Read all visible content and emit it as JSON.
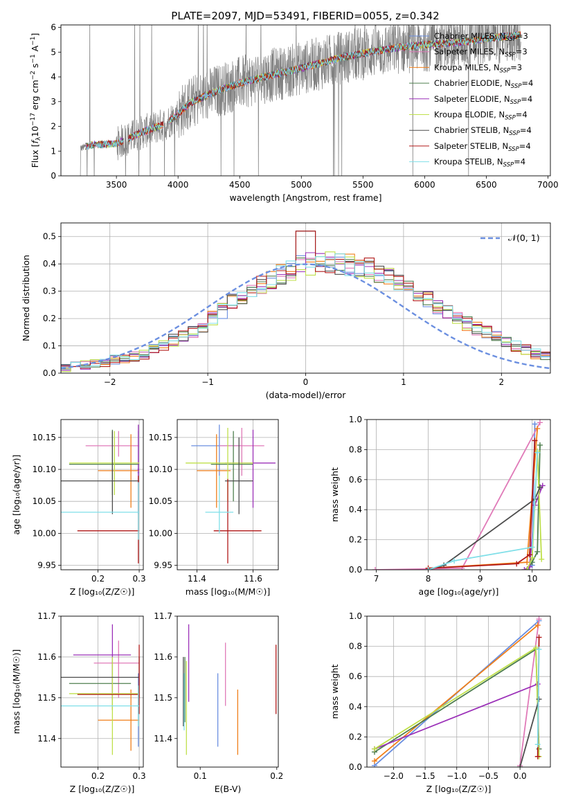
{
  "figure": {
    "title": "PLATE=2097, MJD=53491, FIBERID=0055, z=0.342"
  },
  "colors": {
    "Chabrier MILES": "#6b8fe0",
    "Salpeter MILES": "#e07ab8",
    "Kroupa MILES": "#f07f1a",
    "Chabrier ELODIE": "#4f7f4f",
    "Salpeter ELODIE": "#9b30b8",
    "Kroupa ELODIE": "#bfe04a",
    "Chabrier STELIB": "#4d4d4d",
    "Salpeter STELIB": "#b01818",
    "Kroupa STELIB": "#7fdfe8",
    "data": "#808080",
    "normal": "#6b8fe0"
  },
  "chart_data": [
    {
      "id": "spectrum",
      "type": "line",
      "title": "PLATE=2097, MJD=53491, FIBERID=0055, z=0.342",
      "xlabel": "wavelength [Angstrom, rest frame]",
      "ylabel_parts": [
        "Flux [",
        "f",
        "λ",
        "10",
        "−17",
        " erg cm",
        "−2",
        " s",
        "−1",
        " A",
        "−1",
        "]"
      ],
      "xlim": [
        3050,
        7020
      ],
      "ylim": [
        0,
        6.1
      ],
      "xticks": [
        3500,
        4000,
        4500,
        5000,
        5500,
        6000,
        6500,
        7000
      ],
      "yticks": [
        0,
        1,
        2,
        3,
        4,
        5,
        6
      ],
      "grid": false,
      "legend_position": "top-right",
      "x_range_data": [
        3200,
        6780
      ],
      "continuum": {
        "x": [
          3200,
          3300,
          3500,
          3700,
          3900,
          4000,
          4100,
          4300,
          4500,
          4700,
          5000,
          5300,
          5500,
          5800,
          6000,
          6300,
          6600,
          6780
        ],
        "y": [
          1.1,
          1.25,
          1.3,
          1.75,
          2.1,
          2.5,
          2.95,
          3.4,
          3.75,
          4.0,
          4.35,
          4.75,
          4.95,
          5.2,
          5.3,
          5.4,
          5.6,
          5.7
        ]
      },
      "legend": [
        {
          "name": "Chabrier MILES",
          "base": "Chabrier MILES, N",
          "sub": "SSP",
          "tail": "=3"
        },
        {
          "name": "Salpeter MILES",
          "base": "Salpeter MILES, N",
          "sub": "SSP",
          "tail": "=3"
        },
        {
          "name": "Kroupa MILES",
          "base": "Kroupa MILES, N",
          "sub": "SSP",
          "tail": "=3"
        },
        {
          "name": "Chabrier ELODIE",
          "base": "Chabrier ELODIE, N",
          "sub": "SSP",
          "tail": "=4"
        },
        {
          "name": "Salpeter ELODIE",
          "base": "Salpeter ELODIE, N",
          "sub": "SSP",
          "tail": "=4"
        },
        {
          "name": "Kroupa ELODIE",
          "base": "Kroupa ELODIE, N",
          "sub": "SSP",
          "tail": "=4"
        },
        {
          "name": "Chabrier STELIB",
          "base": "Chabrier STELIB, N",
          "sub": "SSP",
          "tail": "=4"
        },
        {
          "name": "Salpeter STELIB",
          "base": "Salpeter STELIB, N",
          "sub": "SSP",
          "tail": "=4"
        },
        {
          "name": "Kroupa STELIB",
          "base": "Kroupa STELIB, N",
          "sub": "SSP",
          "tail": "=4"
        }
      ]
    },
    {
      "id": "residuals",
      "type": "area",
      "xlabel": "(data-model)/error",
      "ylabel": "Normed distribution",
      "xlim": [
        -2.5,
        2.5
      ],
      "ylim": [
        0,
        0.55
      ],
      "xticks": [
        -2,
        -1,
        0,
        1,
        2
      ],
      "yticks": [
        0.0,
        0.1,
        0.2,
        0.3,
        0.4,
        0.5
      ],
      "grid": true,
      "legend_position": "top-right",
      "legend": "𝒩(0, 1)",
      "bin_width": 0.1,
      "envelope_y": [
        0.02,
        0.025,
        0.03,
        0.035,
        0.04,
        0.05,
        0.055,
        0.06,
        0.07,
        0.085,
        0.1,
        0.12,
        0.135,
        0.15,
        0.17,
        0.2,
        0.23,
        0.26,
        0.28,
        0.3,
        0.32,
        0.34,
        0.36,
        0.38,
        0.395,
        0.4,
        0.4,
        0.41,
        0.4,
        0.395,
        0.39,
        0.385,
        0.37,
        0.35,
        0.33,
        0.31,
        0.29,
        0.27,
        0.245,
        0.22,
        0.2,
        0.18,
        0.165,
        0.15,
        0.135,
        0.115,
        0.1,
        0.085,
        0.07,
        0.06,
        0.05
      ]
    },
    {
      "id": "age-vs-Z",
      "type": "scatter",
      "xlabel": "Z [log₁₀(Z/Z☉)]",
      "ylabel": "age  [log₁₀(age/yr)]",
      "xlim": [
        0.11,
        0.31
      ],
      "ylim": [
        9.943,
        10.178
      ],
      "xticks": [
        0.2,
        0.3
      ],
      "yticks": [
        9.95,
        10.0,
        10.05,
        10.1,
        10.15
      ],
      "grid": true,
      "points": [
        {
          "name": "Chabrier MILES",
          "x": 0.298,
          "xerr": [
            0.296,
            0.3
          ],
          "y": 10.095,
          "yerr": [
            10.03,
            10.16
          ]
        },
        {
          "name": "Salpeter MILES",
          "x": 0.25,
          "xerr": [
            0.17,
            0.3
          ],
          "y": 10.137,
          "yerr": [
            10.12,
            10.16
          ]
        },
        {
          "name": "Kroupa MILES",
          "x": 0.28,
          "xerr": [
            0.2,
            0.3
          ],
          "y": 10.098,
          "yerr": [
            10.04,
            10.155
          ]
        },
        {
          "name": "Chabrier ELODIE",
          "x": 0.235,
          "xerr": [
            0.13,
            0.3
          ],
          "y": 10.108,
          "yerr": [
            10.06,
            10.162
          ]
        },
        {
          "name": "Salpeter ELODIE",
          "x": 0.298,
          "xerr": [
            0.296,
            0.3
          ],
          "y": 10.1,
          "yerr": [
            10.03,
            10.17
          ]
        },
        {
          "name": "Kroupa ELODIE",
          "x": 0.24,
          "xerr": [
            0.13,
            0.3
          ],
          "y": 10.11,
          "yerr": [
            10.06,
            10.16
          ]
        },
        {
          "name": "Chabrier STELIB",
          "x": 0.235,
          "xerr": [
            0.11,
            0.3
          ],
          "y": 10.082,
          "yerr": [
            10.03,
            10.16
          ]
        },
        {
          "name": "Salpeter STELIB",
          "x": 0.298,
          "xerr": [
            0.15,
            0.3
          ],
          "y": 10.004,
          "yerr": [
            9.953,
            10.09
          ]
        },
        {
          "name": "Kroupa STELIB",
          "x": 0.298,
          "xerr": [
            0.11,
            0.3
          ],
          "y": 10.033,
          "yerr": [
            9.99,
            10.08
          ]
        }
      ]
    },
    {
      "id": "age-vs-mass",
      "type": "scatter",
      "xlabel": "mass [log₁₀(M/M☉)]",
      "ylabel": "",
      "xlim": [
        11.33,
        11.69
      ],
      "ylim": [
        9.943,
        10.178
      ],
      "xticks": [
        11.4,
        11.6
      ],
      "yticks": [
        9.95,
        10.0,
        10.05,
        10.1,
        10.15
      ],
      "grid": true,
      "points": [
        {
          "name": "Chabrier MILES",
          "x": 11.48,
          "xerr": [
            11.38,
            11.56
          ],
          "y": 10.137,
          "yerr": [
            10.09,
            10.17
          ]
        },
        {
          "name": "Salpeter MILES",
          "x": 11.56,
          "xerr": [
            11.48,
            11.64
          ],
          "y": 10.137,
          "yerr": [
            10.09,
            10.165
          ]
        },
        {
          "name": "Kroupa MILES",
          "x": 11.47,
          "xerr": [
            11.4,
            11.52
          ],
          "y": 10.098,
          "yerr": [
            10.04,
            10.155
          ]
        },
        {
          "name": "Chabrier ELODIE",
          "x": 11.53,
          "xerr": [
            11.45,
            11.6
          ],
          "y": 10.108,
          "yerr": [
            10.05,
            10.16
          ]
        },
        {
          "name": "Salpeter ELODIE",
          "x": 11.6,
          "xerr": [
            11.5,
            11.68
          ],
          "y": 10.11,
          "yerr": [
            10.04,
            10.162
          ]
        },
        {
          "name": "Kroupa ELODIE",
          "x": 11.51,
          "xerr": [
            11.36,
            11.6
          ],
          "y": 10.11,
          "yerr": [
            10.05,
            10.165
          ]
        },
        {
          "name": "Chabrier STELIB",
          "x": 11.55,
          "xerr": [
            11.5,
            11.6
          ],
          "y": 10.082,
          "yerr": [
            10.03,
            10.15
          ]
        },
        {
          "name": "Salpeter STELIB",
          "x": 11.51,
          "xerr": [
            11.46,
            11.63
          ],
          "y": 10.004,
          "yerr": [
            9.953,
            10.085
          ]
        },
        {
          "name": "Kroupa STELIB",
          "x": 11.48,
          "xerr": [
            11.43,
            11.53
          ],
          "y": 10.033,
          "yerr": [
            10.0,
            10.09
          ]
        }
      ]
    },
    {
      "id": "massweight-vs-age",
      "type": "line",
      "xlabel": "age  [log₁₀(age/yr)]",
      "ylabel": "mass weight",
      "xlim": [
        6.82,
        10.35
      ],
      "ylim": [
        0,
        1.0
      ],
      "xticks": [
        7,
        8,
        9,
        10
      ],
      "yticks": [
        0.0,
        0.2,
        0.4,
        0.6,
        0.8,
        1.0
      ],
      "grid": true,
      "series": [
        {
          "name": "Chabrier MILES",
          "x": [
            9.9,
            10.0,
            10.05
          ],
          "y": [
            0.0,
            0.03,
            0.97
          ]
        },
        {
          "name": "Salpeter MILES",
          "x": [
            6.98,
            8.65,
            10.15
          ],
          "y": [
            0.0,
            0.01,
            0.98
          ]
        },
        {
          "name": "Kroupa MILES",
          "x": [
            8.0,
            9.9,
            10.1
          ],
          "y": [
            0.01,
            0.05,
            0.94
          ]
        },
        {
          "name": "Chabrier ELODIE",
          "x": [
            9.9,
            10.0,
            10.1,
            10.15
          ],
          "y": [
            0.0,
            0.05,
            0.12,
            0.83
          ]
        },
        {
          "name": "Salpeter ELODIE",
          "x": [
            9.85,
            9.95,
            10.05,
            10.2
          ],
          "y": [
            0.0,
            0.02,
            0.43,
            0.56
          ]
        },
        {
          "name": "Kroupa ELODIE",
          "x": [
            9.9,
            10.0,
            10.1,
            10.18
          ],
          "y": [
            0.0,
            0.08,
            0.79,
            0.07
          ]
        },
        {
          "name": "Chabrier STELIB",
          "x": [
            8.0,
            8.3,
            10.05,
            10.15
          ],
          "y": [
            0.0,
            0.03,
            0.47,
            0.55
          ]
        },
        {
          "name": "Salpeter STELIB",
          "x": [
            8.0,
            9.7,
            9.95,
            10.05
          ],
          "y": [
            0.01,
            0.04,
            0.1,
            0.86
          ]
        },
        {
          "name": "Kroupa STELIB",
          "x": [
            8.0,
            8.5,
            10.0,
            10.1
          ],
          "y": [
            0.0,
            0.06,
            0.15,
            0.78
          ]
        }
      ]
    },
    {
      "id": "mass-vs-Z",
      "type": "scatter",
      "xlabel": "Z [log₁₀(Z/Z☉)]",
      "ylabel": "mass [log₁₀(M/M☉)]",
      "xlim": [
        0.11,
        0.31
      ],
      "ylim": [
        11.33,
        11.7
      ],
      "xticks": [
        0.2,
        0.3
      ],
      "yticks": [
        11.4,
        11.5,
        11.6,
        11.7
      ],
      "grid": true,
      "points": [
        {
          "name": "Chabrier MILES",
          "x": 0.298,
          "xerr": [
            0.296,
            0.3
          ],
          "y": 11.48,
          "yerr": [
            11.38,
            11.56
          ]
        },
        {
          "name": "Salpeter MILES",
          "x": 0.25,
          "xerr": [
            0.19,
            0.3
          ],
          "y": 11.585,
          "yerr": [
            11.5,
            11.64
          ]
        },
        {
          "name": "Kroupa MILES",
          "x": 0.28,
          "xerr": [
            0.2,
            0.3
          ],
          "y": 11.445,
          "yerr": [
            11.37,
            11.52
          ]
        },
        {
          "name": "Chabrier ELODIE",
          "x": 0.235,
          "xerr": [
            0.13,
            0.28
          ],
          "y": 11.535,
          "yerr": [
            11.47,
            11.59
          ]
        },
        {
          "name": "Salpeter ELODIE",
          "x": 0.235,
          "xerr": [
            0.14,
            0.28
          ],
          "y": 11.605,
          "yerr": [
            11.5,
            11.68
          ]
        },
        {
          "name": "Kroupa ELODIE",
          "x": 0.235,
          "xerr": [
            0.13,
            0.3
          ],
          "y": 11.51,
          "yerr": [
            11.36,
            11.6
          ]
        },
        {
          "name": "Chabrier STELIB",
          "x": 0.3,
          "xerr": [
            0.11,
            0.3
          ],
          "y": 11.55,
          "yerr": [
            11.5,
            11.6
          ]
        },
        {
          "name": "Salpeter STELIB",
          "x": 0.3,
          "xerr": [
            0.15,
            0.3
          ],
          "y": 11.508,
          "yerr": [
            11.46,
            11.63
          ]
        },
        {
          "name": "Kroupa STELIB",
          "x": 0.298,
          "xerr": [
            0.11,
            0.3
          ],
          "y": 11.48,
          "yerr": [
            11.43,
            11.53
          ]
        }
      ]
    },
    {
      "id": "mass-vs-EBV",
      "type": "scatter",
      "xlabel": "E(B-V)",
      "ylabel": "",
      "xlim": [
        0.07,
        0.202
      ],
      "ylim": [
        11.33,
        11.7
      ],
      "xticks": [
        0.1,
        0.2
      ],
      "yticks": [
        11.4,
        11.5,
        11.6,
        11.7
      ],
      "grid": false,
      "points": [
        {
          "name": "Chabrier MILES",
          "x": 0.123,
          "y": 11.47,
          "yerr": [
            11.38,
            11.56
          ]
        },
        {
          "name": "Salpeter MILES",
          "x": 0.133,
          "y": 11.56,
          "yerr": [
            11.48,
            11.635
          ]
        },
        {
          "name": "Kroupa MILES",
          "x": 0.149,
          "y": 11.44,
          "yerr": [
            11.36,
            11.52
          ]
        },
        {
          "name": "Chabrier ELODIE",
          "x": 0.08,
          "y": 11.52,
          "yerr": [
            11.44,
            11.6
          ]
        },
        {
          "name": "Salpeter ELODIE",
          "x": 0.085,
          "y": 11.59,
          "yerr": [
            11.49,
            11.68
          ]
        },
        {
          "name": "Kroupa ELODIE",
          "x": 0.082,
          "y": 11.46,
          "yerr": [
            11.36,
            11.59
          ]
        },
        {
          "name": "Chabrier STELIB",
          "x": 0.078,
          "y": 11.52,
          "yerr": [
            11.43,
            11.6
          ]
        },
        {
          "name": "Salpeter STELIB",
          "x": 0.199,
          "y": 11.545,
          "yerr": [
            11.46,
            11.63
          ]
        },
        {
          "name": "Kroupa STELIB",
          "x": 0.079,
          "y": 11.49,
          "yerr": [
            11.42,
            11.56
          ]
        }
      ]
    },
    {
      "id": "massweight-vs-Z",
      "type": "line",
      "xlabel": "Z [log₁₀(Z/Z☉)]",
      "ylabel": "mass weight",
      "xlim": [
        -2.42,
        0.48
      ],
      "ylim": [
        0,
        1.0
      ],
      "xticks": [
        -2.0,
        -1.5,
        -1.0,
        -0.5,
        0.0
      ],
      "yticks": [
        0.0,
        0.2,
        0.4,
        0.6,
        0.8,
        1.0
      ],
      "grid": true,
      "series": [
        {
          "name": "Chabrier MILES",
          "x": [
            -2.3,
            0.3
          ],
          "y": [
            0.01,
            0.97
          ]
        },
        {
          "name": "Salpeter MILES",
          "x": [
            0.0,
            0.3
          ],
          "y": [
            0.01,
            0.98
          ]
        },
        {
          "name": "Kroupa MILES",
          "x": [
            -2.3,
            0.28
          ],
          "y": [
            0.04,
            0.94
          ]
        },
        {
          "name": "Chabrier ELODIE",
          "x": [
            -2.3,
            0.25,
            0.3
          ],
          "y": [
            0.1,
            0.78,
            0.12
          ]
        },
        {
          "name": "Salpeter ELODIE",
          "x": [
            -2.3,
            0.28
          ],
          "y": [
            0.12,
            0.55
          ]
        },
        {
          "name": "Kroupa ELODIE",
          "x": [
            -2.3,
            0.25,
            0.3
          ],
          "y": [
            0.12,
            0.79,
            0.07
          ]
        },
        {
          "name": "Chabrier STELIB",
          "x": [
            0.0,
            0.3
          ],
          "y": [
            0.0,
            0.45
          ]
        },
        {
          "name": "Salpeter STELIB",
          "x": [
            0.28,
            0.3
          ],
          "y": [
            0.07,
            0.86
          ]
        },
        {
          "name": "Kroupa STELIB",
          "x": [
            0.28,
            0.3
          ],
          "y": [
            0.15,
            0.78
          ]
        }
      ]
    }
  ]
}
